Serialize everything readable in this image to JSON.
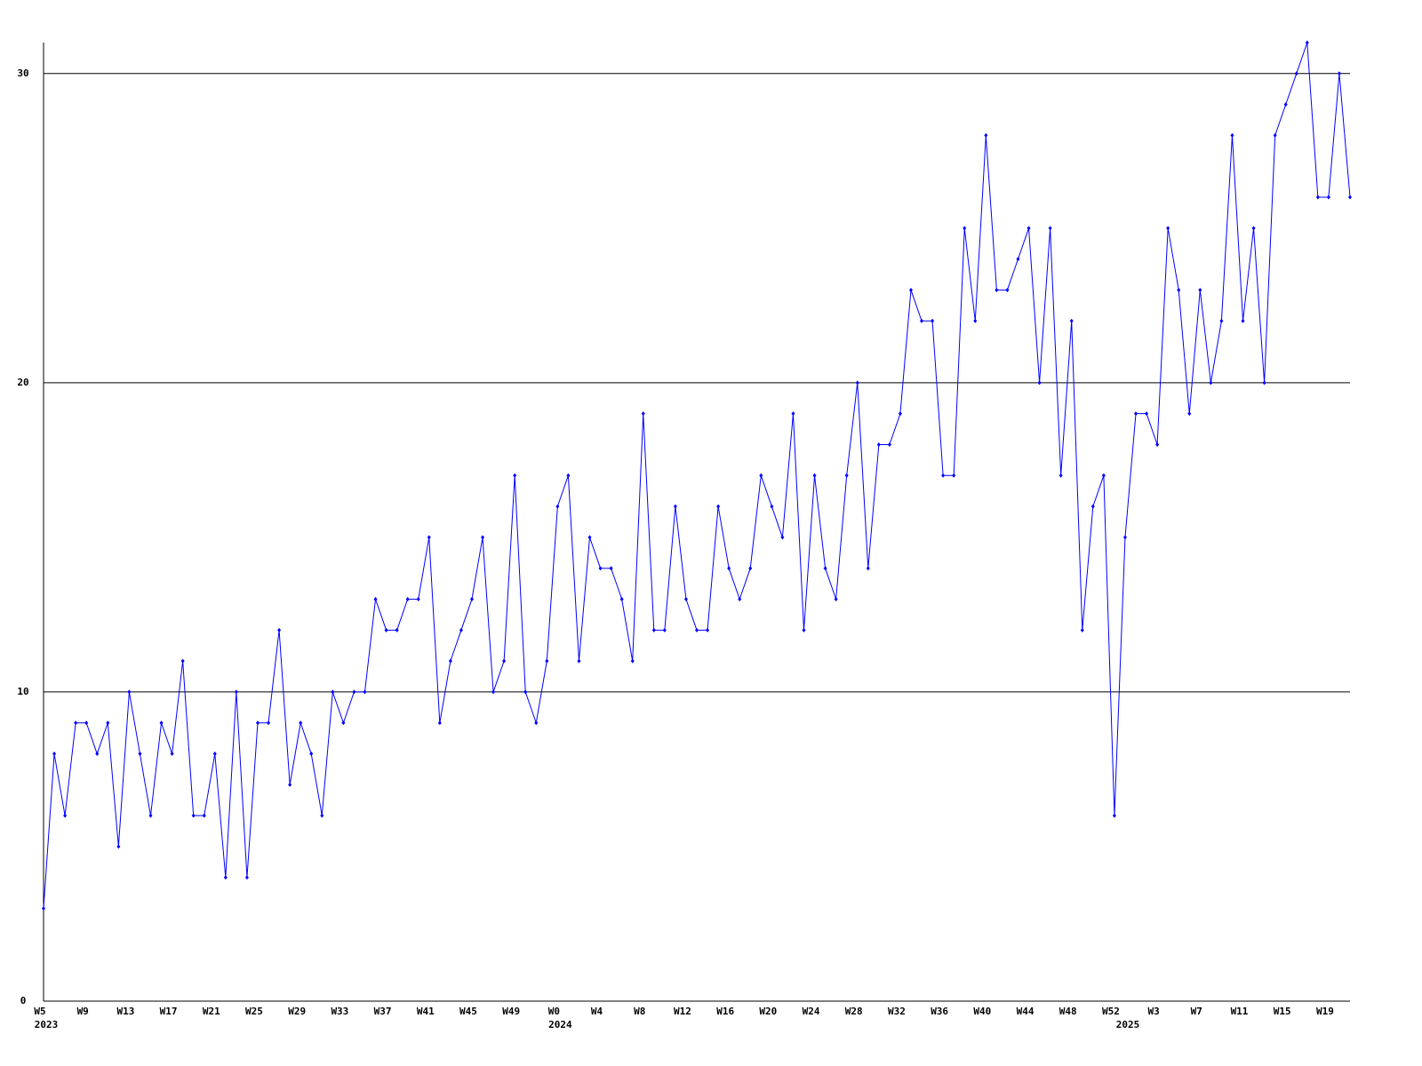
{
  "chart_data": {
    "type": "line",
    "categories": [
      "W5",
      null,
      null,
      null,
      "W9",
      null,
      null,
      null,
      "W13",
      null,
      null,
      null,
      "W17",
      null,
      null,
      null,
      "W21",
      null,
      null,
      null,
      "W25",
      null,
      null,
      null,
      "W29",
      null,
      null,
      null,
      "W33",
      null,
      null,
      null,
      "W37",
      null,
      null,
      null,
      "W41",
      null,
      null,
      null,
      "W45",
      null,
      null,
      null,
      "W49",
      null,
      null,
      null,
      "W0",
      null,
      null,
      null,
      "W4",
      null,
      null,
      null,
      "W8",
      null,
      null,
      null,
      "W12",
      null,
      null,
      null,
      "W16",
      null,
      null,
      null,
      "W20",
      null,
      null,
      null,
      "W24",
      null,
      null,
      null,
      "W28",
      null,
      null,
      null,
      "W32",
      null,
      null,
      null,
      "W36",
      null,
      null,
      null,
      "W40",
      null,
      null,
      null,
      "W44",
      null,
      null,
      null,
      "W48",
      null,
      null,
      null,
      "W52",
      null,
      null,
      null,
      "W3",
      null,
      null,
      null,
      "W7",
      null,
      null,
      null,
      "W11",
      null,
      null,
      null,
      "W15",
      null,
      null,
      null,
      "W19",
      null,
      null
    ],
    "categories2": [
      "2023",
      null,
      null,
      null,
      null,
      null,
      null,
      null,
      null,
      null,
      null,
      null,
      null,
      null,
      null,
      null,
      null,
      null,
      null,
      null,
      null,
      null,
      null,
      null,
      null,
      null,
      null,
      null,
      null,
      null,
      null,
      null,
      null,
      null,
      null,
      null,
      null,
      null,
      null,
      null,
      null,
      null,
      null,
      null,
      null,
      null,
      null,
      null,
      "2024",
      null,
      null,
      null,
      null,
      null,
      null,
      null,
      null,
      null,
      null,
      null,
      null,
      null,
      null,
      null,
      null,
      null,
      null,
      null,
      null,
      null,
      null,
      null,
      null,
      null,
      null,
      null,
      null,
      null,
      null,
      null,
      null,
      null,
      null,
      null,
      null,
      null,
      null,
      null,
      null,
      null,
      null,
      null,
      null,
      null,
      null,
      null,
      null,
      null,
      null,
      null,
      null,
      "2025",
      null,
      null,
      null,
      null,
      null,
      null,
      null,
      null,
      null,
      null,
      null,
      null,
      null,
      null,
      null,
      null,
      null,
      null,
      null,
      null,
      null
    ],
    "series": [
      {
        "color": "#0000ff",
        "values": [
          3,
          8,
          6,
          9,
          9,
          8,
          9,
          5,
          10,
          8,
          6,
          9,
          8,
          11,
          6,
          6,
          8,
          4,
          10,
          4,
          9,
          9,
          12,
          7,
          9,
          8,
          6,
          10,
          9,
          10,
          10,
          13,
          12,
          12,
          13,
          13,
          15,
          9,
          11,
          12,
          13,
          15,
          10,
          11,
          17,
          10,
          9,
          11,
          16,
          17,
          11,
          15,
          14,
          14,
          13,
          11,
          19,
          12,
          12,
          16,
          13,
          12,
          12,
          16,
          14,
          13,
          14,
          17,
          16,
          15,
          19,
          12,
          17,
          14,
          13,
          17,
          20,
          14,
          18,
          18,
          19,
          23,
          22,
          22,
          17,
          17,
          25,
          22,
          28,
          23,
          23,
          24,
          25,
          20,
          25,
          17,
          22,
          12,
          16,
          17,
          6,
          15,
          19,
          19,
          18,
          25,
          23,
          19,
          23,
          20,
          22,
          28,
          22,
          25,
          20,
          28,
          29,
          30,
          31,
          26,
          26,
          30,
          26
        ]
      }
    ],
    "ylim": [
      0,
      31
    ],
    "yticks": [
      0,
      10,
      20,
      30
    ],
    "grid": true
  }
}
